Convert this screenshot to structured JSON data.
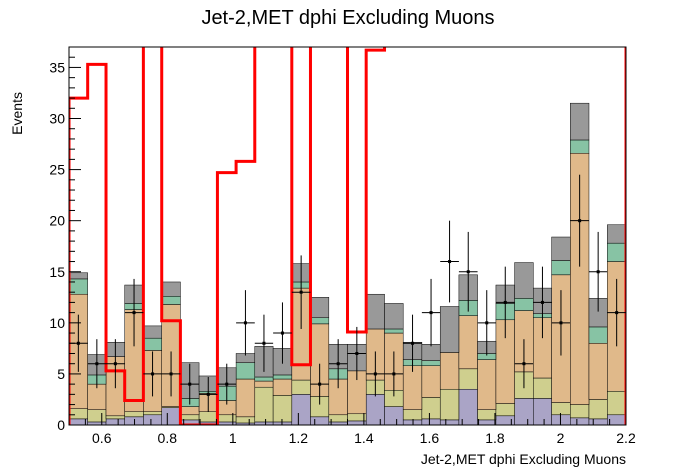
{
  "chart_data": {
    "type": "bar",
    "title": "Jet-2,MET dphi Excluding Muons",
    "xlabel": "Jet-2,MET dphi Excluding Muons",
    "ylabel": "Events",
    "xlim": [
      0.5,
      2.2
    ],
    "ylim": [
      0,
      37
    ],
    "x_ticks": [
      0.6,
      0.8,
      1,
      1.2,
      1.4,
      1.6,
      1.8,
      2,
      2.2
    ],
    "y_ticks": [
      0,
      5,
      10,
      15,
      20,
      25,
      30,
      35
    ],
    "bin_edges": [
      0.5,
      0.557,
      0.613,
      0.67,
      0.727,
      0.783,
      0.84,
      0.897,
      0.953,
      1.01,
      1.067,
      1.123,
      1.18,
      1.237,
      1.293,
      1.35,
      1.407,
      1.463,
      1.52,
      1.577,
      1.633,
      1.69,
      1.747,
      1.803,
      1.86,
      1.917,
      1.973,
      2.03,
      2.087,
      2.143,
      2.2
    ],
    "stack": [
      {
        "color": "#aaa4c6",
        "values": [
          0.6,
          0.3,
          0.6,
          0.8,
          1.0,
          1.7,
          0.5,
          0.3,
          0.3,
          0.2,
          0.3,
          0.3,
          3.0,
          0.8,
          0.3,
          0.4,
          3.0,
          1.8,
          0.5,
          0.6,
          0.5,
          3.5,
          0.5,
          0.9,
          2.6,
          2.6,
          1.0,
          0.7,
          0.6,
          1.0
        ]
      },
      {
        "color": "#cfcf8e",
        "values": [
          1.0,
          1.2,
          0.3,
          0.5,
          0.3,
          0.1,
          0.5,
          1.0,
          0.7,
          0.6,
          3.4,
          2.6,
          1.4,
          2.0,
          0.7,
          0.7,
          1.4,
          1.6,
          1.0,
          2.1,
          3.0,
          2.0,
          1.0,
          1.2,
          2.6,
          2.0,
          1.2,
          1.3,
          1.9,
          2.3
        ]
      },
      {
        "color": "#e0b98a",
        "values": [
          11.2,
          2.5,
          5.8,
          10.0,
          6.0,
          10.0,
          0.8,
          1.8,
          1.4,
          3.7,
          0.6,
          1.6,
          9.0,
          7.1,
          3.5,
          4.2,
          5.0,
          5.6,
          4.3,
          3.1,
          3.6,
          5.2,
          4.9,
          8.2,
          6.0,
          5.9,
          12.5,
          24.6,
          5.5,
          12.7
        ]
      },
      {
        "color": "#87c3a4",
        "values": [
          1.5,
          0.9,
          0.0,
          0.6,
          1.2,
          0.8,
          0.8,
          0.2,
          1.4,
          1.6,
          0.4,
          0.4,
          0.6,
          0.6,
          1.0,
          0.0,
          0.0,
          0.4,
          0.6,
          0.5,
          0.0,
          1.5,
          0.6,
          1.6,
          1.2,
          0.4,
          1.4,
          1.3,
          1.6,
          1.8
        ]
      },
      {
        "color": "#999999",
        "values": [
          0.6,
          2.0,
          1.4,
          1.8,
          1.2,
          1.4,
          3.5,
          1.5,
          1.8,
          0.9,
          3.0,
          2.6,
          1.8,
          2.0,
          2.4,
          2.6,
          3.4,
          2.5,
          1.7,
          1.6,
          4.5,
          2.5,
          1.2,
          1.8,
          3.5,
          2.5,
          2.3,
          3.6,
          2.8,
          1.8
        ]
      }
    ],
    "signal": {
      "color": "#ff0000",
      "values": [
        32.0,
        35.3,
        5.3,
        2.4,
        100,
        10.2,
        0.0,
        0.0,
        24.7,
        25.8,
        100,
        100,
        5.9,
        100,
        100,
        9.1,
        36.7,
        100,
        100,
        100,
        100,
        100,
        100,
        100,
        100,
        100,
        100,
        100,
        100,
        100
      ]
    },
    "data_points": {
      "values": [
        8.0,
        6.0,
        6.0,
        11.0,
        5.0,
        5.0,
        4.0,
        3.0,
        4.0,
        10.0,
        8.0,
        9.0,
        13.0,
        4.0,
        6.0,
        7.0,
        5.0,
        5.0,
        8.0,
        11.0,
        16.0,
        15.0,
        10.0,
        12.0,
        6.0,
        12.0,
        10.0,
        20.0,
        15.0,
        11.0
      ],
      "errors": [
        2.8,
        2.4,
        2.4,
        3.3,
        2.2,
        2.2,
        2.0,
        1.7,
        2.0,
        3.2,
        2.8,
        3.0,
        3.6,
        2.0,
        2.4,
        2.6,
        2.2,
        2.2,
        2.8,
        3.3,
        4.0,
        3.9,
        3.2,
        3.5,
        2.4,
        3.5,
        3.2,
        4.5,
        3.9,
        3.3
      ]
    },
    "grid": false
  }
}
